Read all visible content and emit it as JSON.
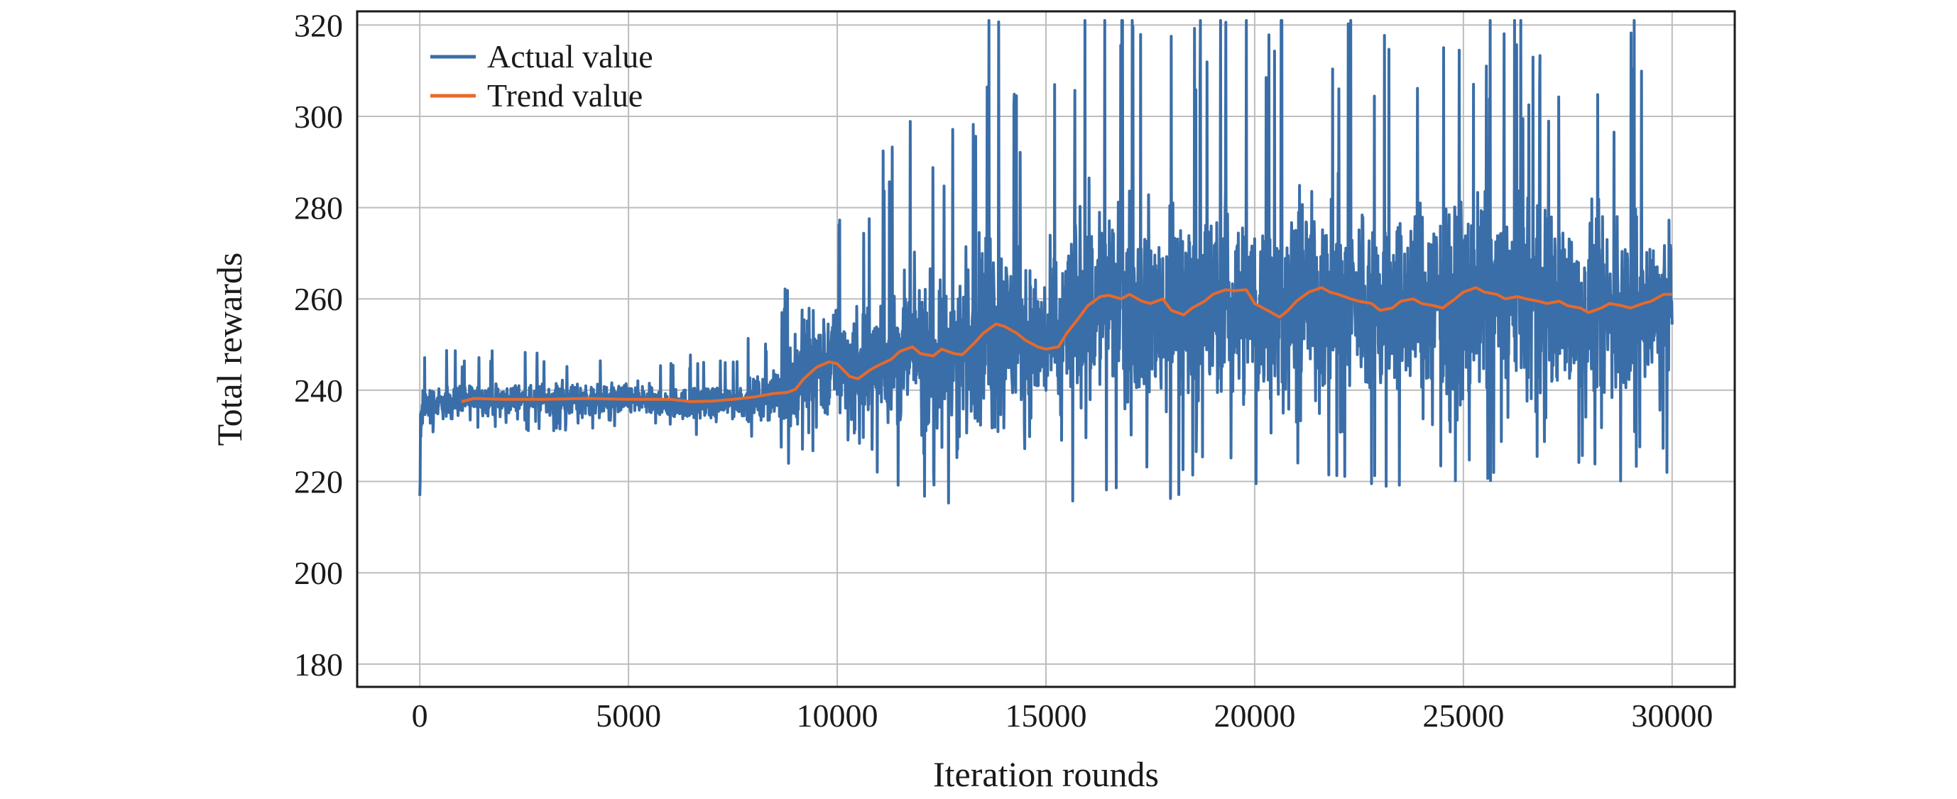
{
  "chart_data": {
    "type": "line",
    "title": "",
    "xlabel": "Iteration rounds",
    "ylabel": "Total rewards",
    "xlim": [
      -1500,
      31500
    ],
    "ylim": [
      175,
      323
    ],
    "xticks": [
      0,
      5000,
      10000,
      15000,
      20000,
      25000,
      30000
    ],
    "yticks": [
      180,
      200,
      220,
      240,
      260,
      280,
      300,
      320
    ],
    "grid": true,
    "legend_position": "top-left",
    "series": [
      {
        "name": "Actual value",
        "color": "#3a6ea8",
        "style": "noisy",
        "x": [
          0,
          30,
          60,
          100,
          150,
          200,
          300,
          400,
          500,
          1000,
          1500,
          2000,
          2500,
          3000,
          3700,
          3800,
          4000,
          5000,
          6000,
          7000,
          8000,
          8600,
          8800,
          9000,
          9200,
          9500,
          10000,
          10500,
          11000,
          11500,
          12000,
          12500,
          13000,
          13500,
          13700,
          14000,
          14500,
          15000,
          15300,
          15600,
          16000,
          16500,
          17000,
          17500,
          18000,
          18500,
          19000,
          19500,
          20000,
          20500,
          21000,
          21500,
          22000,
          22500,
          23000,
          23500,
          24000,
          24500,
          25000,
          25500,
          26000,
          26500,
          27000,
          27500,
          28000,
          28500,
          29000,
          29500,
          30000
        ],
        "center": [
          215,
          232,
          236,
          237,
          237,
          236,
          237,
          237,
          237,
          238,
          238,
          238,
          238,
          238,
          238,
          238,
          238,
          238,
          237,
          237,
          238,
          239,
          240,
          242,
          244,
          246,
          246,
          244,
          246,
          248,
          249,
          248,
          250,
          253,
          254,
          253,
          251,
          250,
          252,
          257,
          260,
          260,
          259,
          258,
          257,
          259,
          260,
          260,
          258,
          256,
          260,
          261,
          260,
          259,
          258,
          259,
          260,
          259,
          260,
          261,
          260,
          259,
          259,
          258,
          258,
          257,
          258,
          259,
          260
        ],
        "amplitude": [
          30,
          12,
          8,
          7,
          6,
          6,
          6,
          5,
          5,
          5,
          5,
          5,
          5,
          5,
          5,
          5,
          5,
          5,
          5,
          5,
          6,
          8,
          12,
          18,
          20,
          20,
          18,
          18,
          20,
          22,
          24,
          24,
          26,
          30,
          34,
          30,
          26,
          24,
          26,
          30,
          32,
          32,
          30,
          30,
          30,
          30,
          30,
          30,
          30,
          30,
          30,
          30,
          30,
          30,
          30,
          30,
          30,
          30,
          30,
          30,
          30,
          28,
          28,
          28,
          28,
          28,
          28,
          28,
          28
        ]
      },
      {
        "name": "Trend value",
        "color": "#e8692a",
        "x": [
          1000,
          1300,
          2000,
          3000,
          4000,
          5000,
          6000,
          6500,
          7000,
          7500,
          8000,
          8500,
          8800,
          9000,
          9200,
          9500,
          9800,
          10000,
          10300,
          10500,
          10800,
          11000,
          11300,
          11500,
          11800,
          12000,
          12300,
          12500,
          12800,
          13000,
          13300,
          13500,
          13800,
          14000,
          14300,
          14500,
          14800,
          15000,
          15300,
          15500,
          15800,
          16000,
          16300,
          16500,
          16800,
          17000,
          17300,
          17500,
          17800,
          18000,
          18300,
          18500,
          18800,
          19000,
          19300,
          19500,
          19800,
          20000,
          20300,
          20600,
          20800,
          21000,
          21300,
          21600,
          21800,
          22000,
          22300,
          22500,
          22800,
          23000,
          23300,
          23500,
          23800,
          24000,
          24300,
          24500,
          24800,
          25000,
          25300,
          25500,
          25800,
          26000,
          26300,
          26500,
          26800,
          27000,
          27300,
          27500,
          27800,
          28000,
          28300,
          28500,
          28800,
          29000,
          29300,
          29500,
          29800,
          30000
        ],
        "y": [
          237.5,
          238.2,
          238.0,
          238.0,
          238.2,
          238.0,
          238.0,
          237.5,
          237.6,
          238.0,
          238.5,
          239.3,
          239.5,
          240.2,
          242.5,
          245.0,
          246.2,
          245.8,
          243.0,
          242.5,
          244.5,
          245.5,
          246.8,
          248.5,
          249.5,
          248.0,
          247.5,
          249.0,
          248.0,
          247.8,
          250.5,
          252.5,
          254.5,
          254.0,
          252.5,
          251.0,
          249.5,
          249.0,
          249.5,
          252.5,
          256.0,
          258.5,
          260.5,
          260.8,
          260.0,
          261.0,
          259.5,
          259.0,
          260.0,
          257.5,
          256.5,
          258.0,
          259.5,
          261.0,
          262.0,
          261.8,
          262.0,
          259.0,
          257.5,
          256.0,
          257.5,
          259.5,
          261.5,
          262.5,
          261.5,
          261.0,
          260.0,
          259.5,
          259.0,
          257.5,
          258.0,
          259.5,
          260.0,
          259.0,
          258.5,
          258.0,
          260.0,
          261.5,
          262.5,
          261.5,
          261.0,
          260.0,
          260.5,
          260.0,
          259.5,
          259.0,
          259.5,
          258.5,
          258.0,
          257.0,
          258.0,
          259.0,
          258.5,
          258.0,
          259.0,
          259.5,
          261.0,
          261.0
        ]
      }
    ]
  }
}
